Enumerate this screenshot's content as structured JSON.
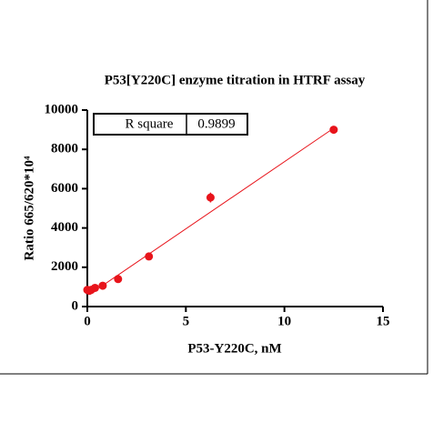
{
  "chart_data": {
    "type": "scatter",
    "title": "P53[Y220C] enzyme titration in HTRF assay",
    "x_label": "P53-Y220C, nM",
    "y_label": "Ratio 665/620*10⁴",
    "xlim": [
      0,
      15
    ],
    "xticks": [
      0,
      5,
      10,
      15
    ],
    "ylim": [
      0,
      10000
    ],
    "yticks": [
      0,
      2000,
      4000,
      6000,
      8000,
      10000
    ],
    "series": [
      {
        "x": [
          0,
          0.098,
          0.195,
          0.39,
          0.78,
          1.56,
          3.125,
          6.25,
          12.5
        ],
        "values": [
          850,
          800,
          850,
          950,
          1060,
          1400,
          2550,
          5550,
          9000
        ],
        "errors": [
          60,
          60,
          60,
          60,
          80,
          100,
          100,
          250,
          80
        ],
        "color": "#e8141b"
      }
    ],
    "fit": {
      "x": [
        0.6,
        12.5
      ],
      "values": [
        950,
        9080
      ],
      "color": "#e8141b"
    },
    "table": {
      "label": "R square",
      "value": "0.9899"
    }
  }
}
